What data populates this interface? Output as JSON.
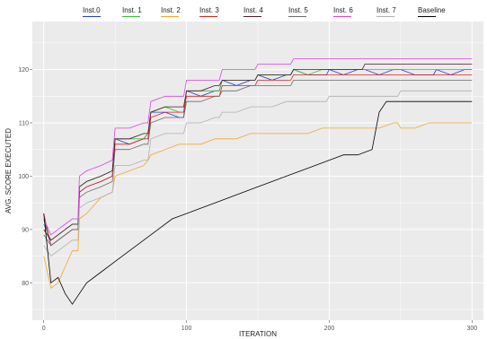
{
  "chart_data": {
    "type": "line",
    "xlabel": "ITERATION",
    "ylabel": "AVG. SCORE EXECUTED",
    "xlim": [
      -8,
      308
    ],
    "ylim": [
      73,
      129
    ],
    "x_ticks": [
      0,
      100,
      200,
      300
    ],
    "y_ticks": [
      80,
      90,
      100,
      110,
      120
    ],
    "legend_position": "top",
    "grid": true,
    "background": "#ebebeb",
    "series": [
      {
        "name": "Inst.0",
        "color": "#1f3fcf",
        "x": [
          0,
          5,
          10,
          15,
          20,
          24,
          25,
          30,
          40,
          48,
          50,
          60,
          70,
          73,
          75,
          85,
          95,
          98,
          100,
          110,
          120,
          123,
          125,
          135,
          145,
          148,
          150,
          160,
          170,
          173,
          175,
          185,
          195,
          198,
          200,
          210,
          220,
          223,
          225,
          235,
          245,
          248,
          250,
          260,
          270,
          273,
          275,
          285,
          295,
          298,
          300
        ],
        "y": [
          92,
          87,
          88,
          89,
          90,
          90,
          97,
          98,
          99,
          100,
          107,
          106,
          107,
          108,
          112,
          112,
          111,
          111,
          116,
          115,
          116,
          116,
          118,
          117,
          118,
          118,
          119,
          118,
          119,
          119,
          120,
          119,
          119,
          119,
          120,
          119,
          120,
          120,
          120,
          119,
          120,
          120,
          120,
          119,
          119,
          119,
          120,
          119,
          120,
          120,
          120
        ]
      },
      {
        "name": "Inst. 1",
        "color": "#33c233",
        "x": [
          0,
          5,
          10,
          15,
          20,
          24,
          25,
          30,
          40,
          48,
          50,
          60,
          70,
          73,
          75,
          85,
          95,
          98,
          100,
          110,
          120,
          123,
          125,
          135,
          145,
          148,
          150,
          160,
          170,
          173,
          175,
          185,
          195,
          198,
          200,
          210,
          220,
          223,
          225,
          235,
          245,
          248,
          250,
          260,
          270,
          273,
          275,
          285,
          295,
          298,
          300
        ],
        "y": [
          91,
          88,
          89,
          90,
          91,
          91,
          98,
          99,
          100,
          101,
          107,
          107,
          107,
          108,
          112,
          113,
          112,
          112,
          116,
          116,
          116,
          116,
          118,
          118,
          118,
          118,
          119,
          119,
          119,
          119,
          120,
          119,
          120,
          120,
          120,
          120,
          120,
          120,
          120,
          120,
          120,
          120,
          120,
          120,
          120,
          120,
          120,
          120,
          120,
          120,
          120
        ]
      },
      {
        "name": "Inst. 2",
        "color": "#f5a623",
        "x": [
          0,
          5,
          10,
          15,
          20,
          24,
          25,
          30,
          40,
          48,
          50,
          60,
          70,
          73,
          75,
          85,
          95,
          98,
          100,
          110,
          120,
          123,
          125,
          135,
          145,
          148,
          150,
          160,
          170,
          173,
          175,
          185,
          195,
          198,
          200,
          210,
          220,
          223,
          225,
          235,
          245,
          248,
          250,
          260,
          270,
          273,
          275,
          285,
          295,
          298,
          300
        ],
        "y": [
          85,
          79,
          80,
          83,
          86,
          86,
          92,
          93,
          96,
          97,
          100,
          101,
          102,
          103,
          104,
          105,
          106,
          106,
          106,
          106,
          107,
          107,
          107,
          107,
          108,
          108,
          108,
          108,
          108,
          108,
          108,
          108,
          109,
          109,
          109,
          109,
          109,
          109,
          109,
          109,
          110,
          110,
          109,
          109,
          110,
          110,
          110,
          110,
          110,
          110,
          110
        ]
      },
      {
        "name": "Inst. 3",
        "color": "#e02020",
        "x": [
          0,
          5,
          10,
          15,
          20,
          24,
          25,
          30,
          40,
          48,
          50,
          60,
          70,
          73,
          75,
          85,
          95,
          98,
          100,
          110,
          120,
          123,
          125,
          135,
          145,
          148,
          150,
          160,
          170,
          173,
          175,
          185,
          195,
          198,
          200,
          210,
          220,
          223,
          225,
          235,
          245,
          248,
          250,
          260,
          270,
          273,
          275,
          285,
          295,
          298,
          300
        ],
        "y": [
          93,
          87,
          88,
          89,
          90,
          90,
          97,
          98,
          99,
          100,
          106,
          106,
          107,
          107,
          111,
          112,
          112,
          112,
          115,
          115,
          115,
          115,
          117,
          117,
          117,
          117,
          118,
          118,
          118,
          118,
          119,
          119,
          119,
          119,
          119,
          119,
          119,
          119,
          119,
          119,
          119,
          119,
          119,
          119,
          119,
          119,
          119,
          119,
          119,
          119,
          119
        ]
      },
      {
        "name": "Inst. 4",
        "color": "#4a1a2a",
        "x": [
          0,
          5,
          10,
          15,
          20,
          24,
          25,
          30,
          40,
          48,
          50,
          60,
          70,
          73,
          75,
          85,
          95,
          98,
          100,
          110,
          120,
          123,
          125,
          135,
          145,
          148,
          150,
          160,
          170,
          173,
          175,
          185,
          195,
          198,
          200,
          210,
          220,
          223,
          225,
          235,
          245,
          248,
          250,
          260,
          270,
          273,
          275,
          285,
          295,
          298,
          300
        ],
        "y": [
          90,
          88,
          89,
          90,
          91,
          91,
          98,
          99,
          100,
          101,
          107,
          107,
          108,
          108,
          112,
          113,
          113,
          113,
          116,
          116,
          117,
          117,
          118,
          118,
          118,
          118,
          119,
          119,
          119,
          119,
          120,
          120,
          120,
          120,
          120,
          120,
          120,
          120,
          121,
          121,
          121,
          121,
          121,
          121,
          121,
          121,
          121,
          121,
          121,
          121,
          121
        ]
      },
      {
        "name": "Inst. 5",
        "color": "#6b6b6b",
        "x": [
          0,
          5,
          10,
          15,
          20,
          24,
          25,
          30,
          40,
          48,
          50,
          60,
          70,
          73,
          75,
          85,
          95,
          98,
          100,
          110,
          120,
          123,
          125,
          135,
          145,
          148,
          150,
          160,
          170,
          173,
          175,
          185,
          195,
          198,
          200,
          210,
          220,
          223,
          225,
          235,
          245,
          248,
          250,
          260,
          270,
          273,
          275,
          285,
          295,
          298,
          300
        ],
        "y": [
          89,
          87,
          88,
          89,
          90,
          90,
          96,
          97,
          98,
          99,
          105,
          105,
          106,
          106,
          110,
          111,
          111,
          111,
          114,
          114,
          115,
          115,
          116,
          116,
          117,
          117,
          117,
          117,
          117,
          117,
          118,
          118,
          118,
          118,
          118,
          118,
          118,
          118,
          118,
          118,
          118,
          118,
          118,
          118,
          118,
          118,
          118,
          118,
          118,
          118,
          118
        ]
      },
      {
        "name": "Inst. 6",
        "color": "#e040e0",
        "x": [
          0,
          5,
          10,
          15,
          20,
          24,
          25,
          30,
          40,
          48,
          50,
          60,
          70,
          73,
          75,
          85,
          95,
          98,
          100,
          110,
          120,
          123,
          125,
          135,
          145,
          148,
          150,
          160,
          170,
          173,
          175,
          185,
          195,
          198,
          200,
          210,
          220,
          223,
          225,
          235,
          245,
          248,
          250,
          260,
          270,
          273,
          275,
          285,
          295,
          298,
          300
        ],
        "y": [
          92,
          89,
          90,
          91,
          92,
          92,
          100,
          101,
          102,
          103,
          109,
          109,
          110,
          110,
          114,
          115,
          115,
          115,
          118,
          118,
          118,
          118,
          120,
          120,
          120,
          120,
          121,
          121,
          121,
          121,
          122,
          122,
          122,
          122,
          122,
          122,
          122,
          122,
          122,
          122,
          122,
          122,
          122,
          122,
          122,
          122,
          122,
          122,
          122,
          122,
          122
        ]
      },
      {
        "name": "Inst. 7",
        "color": "#b0b0b0",
        "x": [
          0,
          5,
          10,
          15,
          20,
          24,
          25,
          30,
          40,
          48,
          50,
          60,
          70,
          73,
          75,
          85,
          95,
          98,
          100,
          110,
          120,
          123,
          125,
          135,
          145,
          148,
          150,
          160,
          170,
          173,
          175,
          185,
          195,
          198,
          200,
          210,
          220,
          223,
          225,
          235,
          245,
          248,
          250,
          260,
          270,
          273,
          275,
          285,
          295,
          298,
          300
        ],
        "y": [
          87,
          85,
          86,
          87,
          88,
          88,
          94,
          95,
          96,
          97,
          102,
          102,
          103,
          103,
          107,
          108,
          108,
          108,
          110,
          110,
          111,
          111,
          112,
          112,
          113,
          113,
          113,
          113,
          114,
          114,
          114,
          114,
          114,
          114,
          115,
          115,
          115,
          115,
          115,
          115,
          115,
          115,
          116,
          116,
          116,
          116,
          116,
          116,
          116,
          116,
          116
        ]
      },
      {
        "name": "Baseline",
        "color": "#000000",
        "x": [
          0,
          5,
          10,
          15,
          20,
          25,
          30,
          40,
          50,
          60,
          70,
          80,
          90,
          100,
          110,
          120,
          130,
          140,
          150,
          160,
          170,
          180,
          190,
          200,
          210,
          220,
          230,
          235,
          240,
          250,
          260,
          270,
          280,
          290,
          300
        ],
        "y": [
          93,
          80,
          81,
          78,
          76,
          78,
          80,
          82,
          84,
          86,
          88,
          90,
          92,
          93,
          94,
          95,
          96,
          97,
          98,
          99,
          100,
          101,
          102,
          103,
          104,
          104,
          105,
          112,
          114,
          114,
          114,
          114,
          114,
          114,
          114
        ]
      }
    ]
  }
}
